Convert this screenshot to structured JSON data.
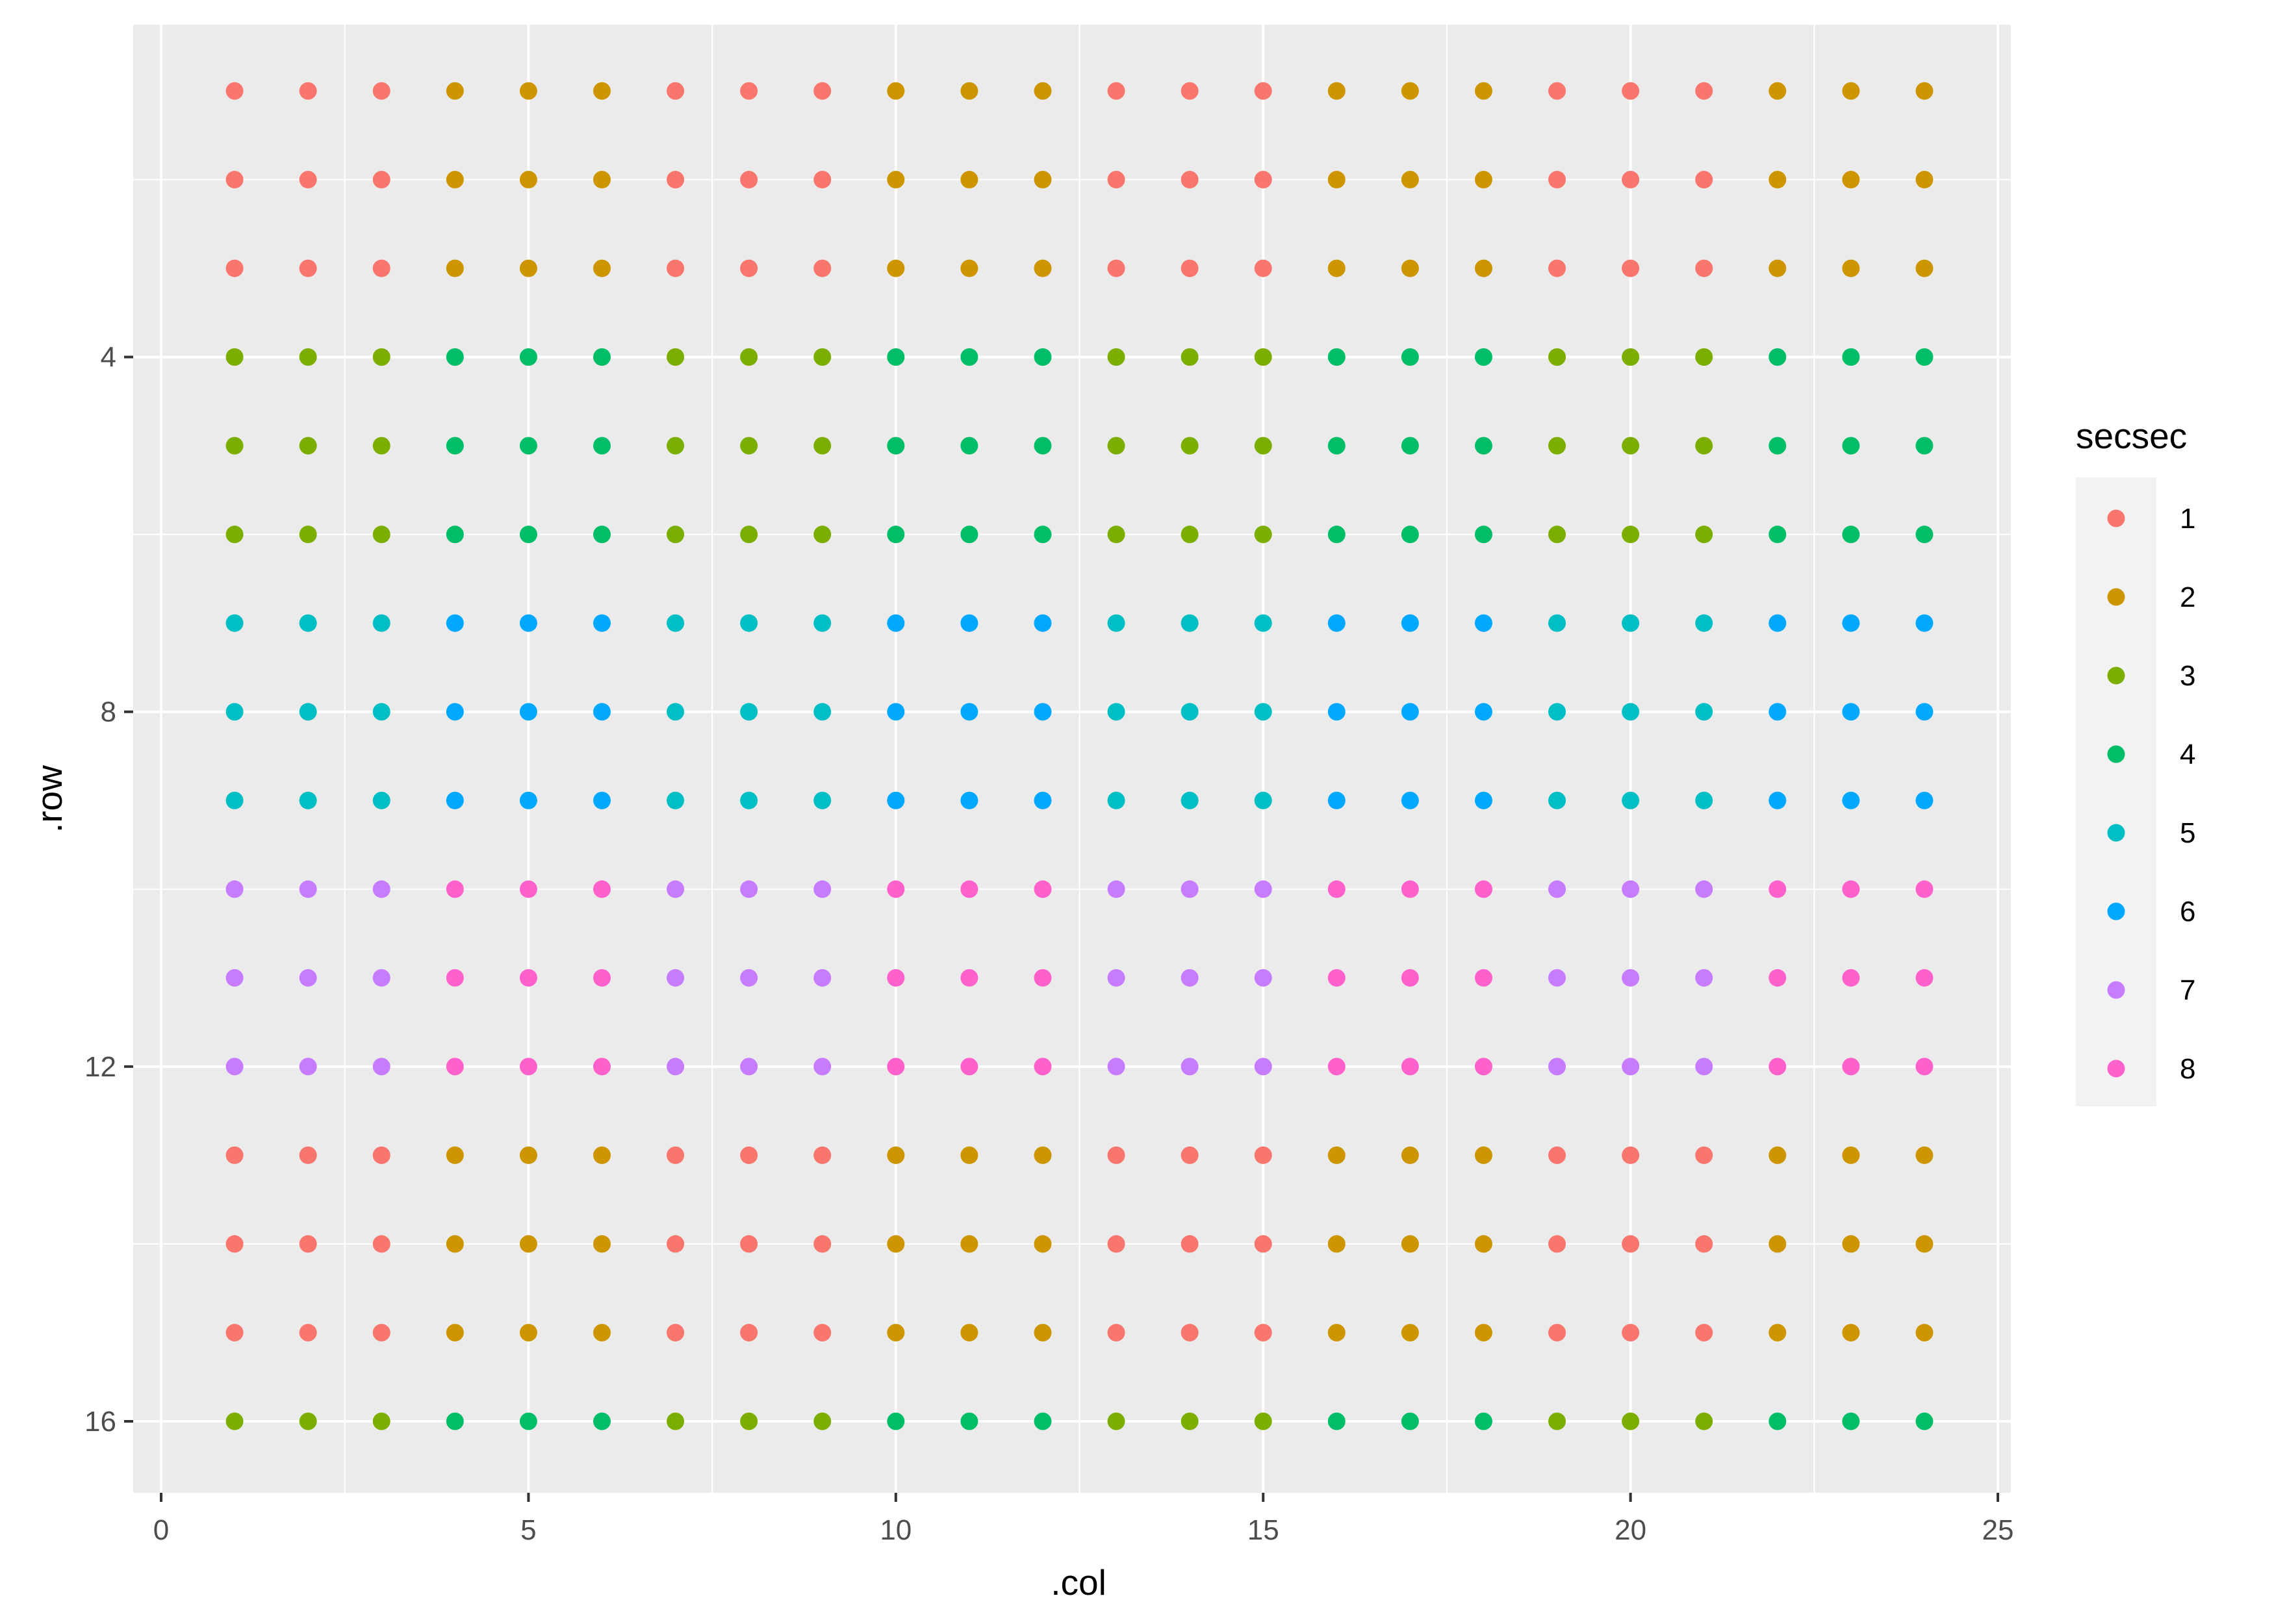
{
  "chart_data": {
    "type": "scatter",
    "xlabel": ".col",
    "ylabel": ".row",
    "xlim": [
      0,
      25
    ],
    "ylim": [
      16.7,
      0.3
    ],
    "y_reversed": true,
    "grid": true,
    "x_ticks": [
      0,
      5,
      10,
      15,
      20,
      25
    ],
    "y_ticks": [
      4,
      8,
      12,
      16
    ],
    "legend": {
      "title": "secsec",
      "placement": "right",
      "entries": [
        {
          "label": "1",
          "color": "#F8766D"
        },
        {
          "label": "2",
          "color": "#CD9600"
        },
        {
          "label": "3",
          "color": "#7CAE00"
        },
        {
          "label": "4",
          "color": "#00BE67"
        },
        {
          "label": "5",
          "color": "#00BFC4"
        },
        {
          "label": "6",
          "color": "#00A9FF"
        },
        {
          "label": "7",
          "color": "#C77CFF"
        },
        {
          "label": "8",
          "color": "#FF61CC"
        }
      ]
    },
    "cols": [
      1,
      2,
      3,
      4,
      5,
      6,
      7,
      8,
      9,
      10,
      11,
      12,
      13,
      14,
      15,
      16,
      17,
      18,
      19,
      20,
      21,
      22,
      23,
      24
    ],
    "rows": [
      1,
      2,
      3,
      4,
      5,
      6,
      7,
      8,
      9,
      10,
      11,
      12,
      13,
      14,
      15,
      16
    ],
    "column_group_pattern": [
      0,
      0,
      0,
      1,
      1,
      1,
      0,
      0,
      0,
      1,
      1,
      1,
      0,
      0,
      0,
      1,
      1,
      1,
      0,
      0,
      0,
      1,
      1,
      1
    ],
    "row_band_secsec": [
      1,
      1,
      1,
      3,
      3,
      3,
      5,
      5,
      5,
      7,
      7,
      7,
      1,
      1,
      1,
      3
    ]
  }
}
